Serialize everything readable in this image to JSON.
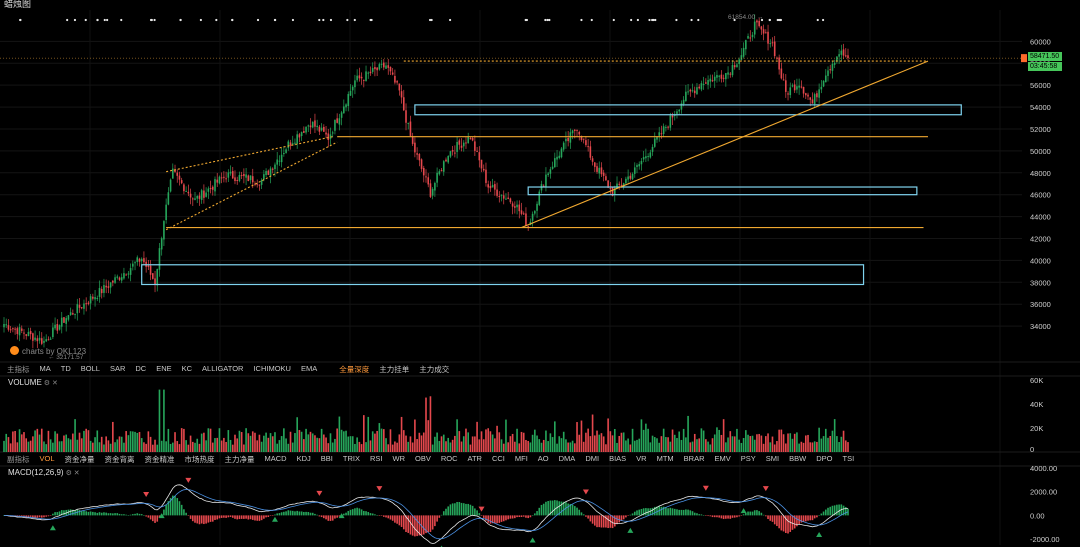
{
  "toolbar": {
    "label": "蜡烛图"
  },
  "price_axis": {
    "ticks": [
      34000,
      36000,
      38000,
      40000,
      42000,
      44000,
      46000,
      48000,
      50000,
      52000,
      54000,
      56000,
      58000,
      60000
    ],
    "current_price": "58471.50",
    "countdown": "03:45:58",
    "high_label": "61854.00",
    "low_label": "32171.57"
  },
  "watermark": "charts by QKL123",
  "main_indicators": {
    "first": "主指标",
    "items": [
      "MA",
      "TD",
      "BOLL",
      "SAR",
      "DC",
      "ENE",
      "KC",
      "ALLIGATOR",
      "ICHIMOKU",
      "EMA"
    ],
    "extra": [
      "全量深度",
      "主力挂单",
      "主力成交"
    ]
  },
  "volume_panel": {
    "label": "VOLUME",
    "ticks": [
      "60K",
      "40K",
      "20K",
      "0"
    ]
  },
  "sub_indicators": {
    "first": "副指标",
    "items": [
      "VOL",
      "资金净量",
      "资金背离",
      "资金精准",
      "市场热度",
      "主力净量",
      "MACD",
      "KDJ",
      "BBI",
      "TRIX",
      "RSI",
      "WR",
      "OBV",
      "ROC",
      "ATR",
      "CCI",
      "MFI",
      "AO",
      "DMA",
      "DMI",
      "BIAS",
      "VR",
      "MTM",
      "BRAR",
      "EMV",
      "PSY",
      "SMI",
      "BBW",
      "DPO",
      "TSI"
    ]
  },
  "macd_panel": {
    "label": "MACD(12,26,9)",
    "ticks": [
      "4000.00",
      "2000.00",
      "0.00",
      "-2000.00"
    ]
  },
  "colors": {
    "up": "#26a65b",
    "down": "#e5484d",
    "trend": "#f0a830",
    "zone": "#7fd3ef",
    "dif": "#e8e8e8",
    "dea": "#4a90e2"
  },
  "chart_data": {
    "type": "candlestick",
    "y_range": [
      32000,
      62500
    ],
    "anchors": [
      {
        "i": 0,
        "p": 34200
      },
      {
        "i": 10,
        "p": 33300
      },
      {
        "i": 18,
        "p": 32600
      },
      {
        "i": 28,
        "p": 34800
      },
      {
        "i": 45,
        "p": 37400
      },
      {
        "i": 62,
        "p": 40200
      },
      {
        "i": 68,
        "p": 38000
      },
      {
        "i": 72,
        "p": 43800
      },
      {
        "i": 76,
        "p": 48000
      },
      {
        "i": 86,
        "p": 45500
      },
      {
        "i": 100,
        "p": 47800
      },
      {
        "i": 116,
        "p": 47300
      },
      {
        "i": 128,
        "p": 50600
      },
      {
        "i": 138,
        "p": 52600
      },
      {
        "i": 146,
        "p": 51200
      },
      {
        "i": 158,
        "p": 56400
      },
      {
        "i": 172,
        "p": 57800
      },
      {
        "i": 178,
        "p": 55400
      },
      {
        "i": 184,
        "p": 50500
      },
      {
        "i": 192,
        "p": 46200
      },
      {
        "i": 200,
        "p": 49800
      },
      {
        "i": 210,
        "p": 51300
      },
      {
        "i": 218,
        "p": 46800
      },
      {
        "i": 230,
        "p": 45200
      },
      {
        "i": 236,
        "p": 43200
      },
      {
        "i": 244,
        "p": 47800
      },
      {
        "i": 250,
        "p": 49800
      },
      {
        "i": 258,
        "p": 52200
      },
      {
        "i": 266,
        "p": 48700
      },
      {
        "i": 274,
        "p": 46200
      },
      {
        "i": 284,
        "p": 48200
      },
      {
        "i": 296,
        "p": 51600
      },
      {
        "i": 306,
        "p": 54800
      },
      {
        "i": 314,
        "p": 56200
      },
      {
        "i": 326,
        "p": 57200
      },
      {
        "i": 332,
        "p": 58800
      },
      {
        "i": 338,
        "p": 61500
      },
      {
        "i": 346,
        "p": 59800
      },
      {
        "i": 352,
        "p": 55300
      },
      {
        "i": 358,
        "p": 56300
      },
      {
        "i": 364,
        "p": 54300
      },
      {
        "i": 370,
        "p": 57200
      },
      {
        "i": 376,
        "p": 59000
      },
      {
        "i": 380,
        "p": 58471
      }
    ],
    "trend_lines": [
      {
        "from": [
          73,
          42800
        ],
        "to": [
          150,
          50800
        ],
        "style": "dotted"
      },
      {
        "from": [
          73,
          48100
        ],
        "to": [
          148,
          51300
        ],
        "style": "dotted"
      },
      {
        "from": [
          73,
          43000
        ],
        "to": [
          414,
          43000
        ],
        "style": "solid"
      },
      {
        "from": [
          150,
          51300
        ],
        "to": [
          416,
          51300
        ],
        "style": "solid"
      },
      {
        "from": [
          233,
          43000
        ],
        "to": [
          416,
          58200
        ],
        "style": "solid"
      },
      {
        "from": [
          180,
          58200
        ],
        "to": [
          416,
          58200
        ],
        "style": "dotted"
      }
    ],
    "zones": [
      {
        "x": [
          62,
          387
        ],
        "y": [
          37800,
          39600
        ]
      },
      {
        "x": [
          185,
          431
        ],
        "y": [
          53300,
          54200
        ]
      },
      {
        "x": [
          236,
          411
        ],
        "y": [
          46000,
          46700
        ]
      }
    ],
    "volume_range": [
      0,
      60000
    ],
    "macd_range": [
      -2500,
      4000
    ]
  }
}
